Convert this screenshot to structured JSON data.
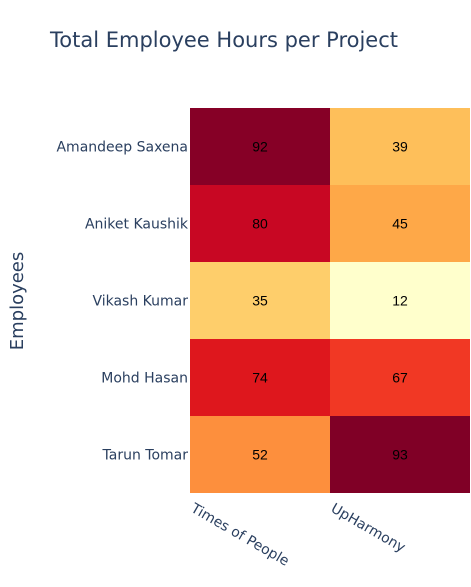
{
  "chart_data": {
    "type": "heatmap",
    "title": "Total Employee Hours per Project",
    "xlabel": "",
    "ylabel": "Employees",
    "x_categories": [
      "Times of People",
      "UpHarmony"
    ],
    "y_categories": [
      "Amandeep Saxena",
      "Aniket Kaushik",
      "Vikash Kumar",
      "Mohd Hasan",
      "Tarun Tomar"
    ],
    "values": [
      [
        92,
        39
      ],
      [
        80,
        45
      ],
      [
        35,
        12
      ],
      [
        74,
        67
      ],
      [
        52,
        93
      ]
    ],
    "colorscale": "YlOrRd",
    "show_cell_labels": true,
    "legend": "none",
    "grid": false
  }
}
